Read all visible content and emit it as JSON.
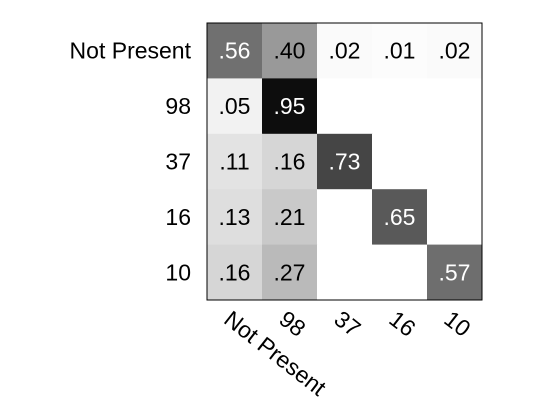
{
  "chart_data": {
    "type": "heatmap",
    "row_labels": [
      "Not Present",
      "98",
      "37",
      "16",
      "10"
    ],
    "col_labels": [
      "Not Present",
      "98",
      "37",
      "16",
      "10"
    ],
    "values": [
      [
        0.56,
        0.4,
        0.02,
        0.01,
        0.02
      ],
      [
        0.05,
        0.95,
        null,
        null,
        null
      ],
      [
        0.11,
        0.16,
        0.73,
        null,
        null
      ],
      [
        0.13,
        0.21,
        null,
        0.65,
        null
      ],
      [
        0.16,
        0.27,
        null,
        null,
        0.57
      ]
    ],
    "cell_labels": [
      [
        ".56",
        ".40",
        ".02",
        ".01",
        ".02"
      ],
      [
        ".05",
        ".95",
        "",
        "",
        ""
      ],
      [
        ".11",
        ".16",
        ".73",
        "",
        ""
      ],
      [
        ".13",
        ".21",
        "",
        ".65",
        ""
      ],
      [
        ".16",
        ".27",
        "",
        "",
        ".57"
      ]
    ],
    "colormap": "grayscale",
    "color_low": "#ffffff",
    "color_high": "#000000"
  }
}
